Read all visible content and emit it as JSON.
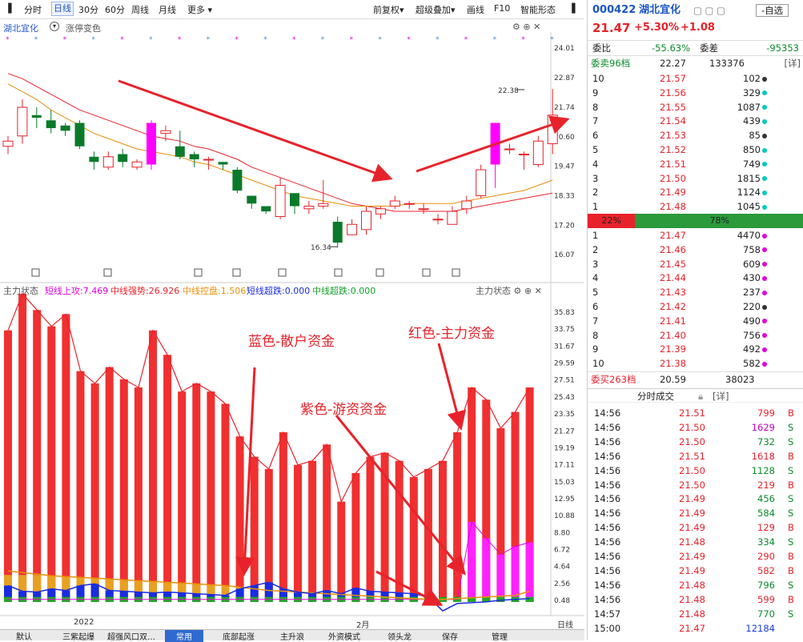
{
  "toolbar": {
    "items": [
      "分时",
      "日线",
      "30分",
      "60分",
      "周线",
      "月线",
      "更多 ▾"
    ],
    "right": [
      "前复权▾",
      "超级叠加▾",
      "画线",
      "F10",
      "智能形态"
    ]
  },
  "chart_header": {
    "name": "湖北宜化",
    "mode": "涨停变色"
  },
  "price_axis": [
    "24.01",
    "22.87",
    "21.74",
    "20.60",
    "19.47",
    "18.33",
    "17.20",
    "16.07"
  ],
  "price_labels": {
    "high": "22.38",
    "low": "16.34"
  },
  "indicator_header": {
    "title": "主力状态",
    "items": [
      {
        "label": "短线上攻:7.469",
        "color": "#e000e0"
      },
      {
        "label": "中线强势:26.926",
        "color": "#e8222a"
      },
      {
        "label": "中线控盘:1.506",
        "color": "#e8900a"
      },
      {
        "label": "短线超跌:0.000",
        "color": "#1a2ce0"
      },
      {
        "label": "中线超跌:0.000",
        "color": "#12a02a"
      }
    ],
    "right": "主力状态"
  },
  "ind_axis": [
    "35.83",
    "33.75",
    "31.67",
    "29.59",
    "27.51",
    "25.43",
    "23.35",
    "21.27",
    "19.19",
    "17.11",
    "15.03",
    "12.95",
    "10.88",
    "8.80",
    "6.72",
    "4.64",
    "2.56",
    "0.48"
  ],
  "x_labels": {
    "a": "2022",
    "b": "2月",
    "c": "日线"
  },
  "annotations": {
    "blue": "蓝色-散户资金",
    "red": "红色-主力资金",
    "purple": "紫色-游资资金"
  },
  "bottom_tabs": [
    "默认",
    "三紫起爆",
    "超强风口双…",
    "常用",
    "底部起涨",
    "主升浪",
    "外资模式",
    "领头龙",
    "保存",
    "管理"
  ],
  "colors": {
    "up": "#e8222a",
    "down": "#0a7a2a",
    "magenta": "#ff00ff",
    "orange": "#e8900a",
    "blue": "#1a2ce0"
  },
  "chart_data": {
    "type": "candlestick",
    "candles": [
      [
        20.2,
        20.4,
        19.9,
        20.6
      ],
      [
        20.6,
        21.7,
        20.3,
        22.0
      ],
      [
        21.4,
        21.3,
        20.9,
        21.7
      ],
      [
        21.2,
        20.9,
        20.7,
        21.6
      ],
      [
        21.0,
        20.8,
        20.6,
        21.1
      ],
      [
        21.1,
        20.2,
        20.1,
        21.2
      ],
      [
        19.8,
        19.6,
        19.3,
        20.0
      ],
      [
        19.4,
        19.8,
        19.3,
        20.0
      ],
      [
        19.9,
        19.6,
        19.4,
        20.1
      ],
      [
        19.4,
        19.6,
        19.3,
        19.7
      ],
      [
        19.5,
        21.1,
        19.3,
        21.2
      ],
      [
        20.7,
        20.8,
        20.4,
        21.0
      ],
      [
        20.2,
        19.8,
        19.7,
        20.8
      ],
      [
        19.9,
        19.7,
        19.4,
        20.0
      ],
      [
        19.7,
        19.7,
        19.3,
        19.8
      ],
      [
        19.6,
        19.5,
        19.3,
        19.6
      ],
      [
        19.3,
        18.5,
        18.4,
        19.4
      ],
      [
        18.3,
        18.0,
        17.8,
        18.3
      ],
      [
        17.9,
        17.7,
        17.6,
        17.9
      ],
      [
        17.5,
        18.7,
        17.4,
        19.0
      ],
      [
        18.4,
        17.9,
        17.6,
        18.4
      ],
      [
        17.8,
        17.9,
        17.6,
        18.1
      ],
      [
        17.9,
        18.0,
        17.8,
        18.9
      ],
      [
        17.3,
        16.5,
        16.3,
        17.5
      ],
      [
        16.8,
        17.2,
        16.8,
        17.4
      ],
      [
        17.0,
        17.7,
        16.8,
        17.9
      ],
      [
        17.6,
        17.8,
        17.4,
        17.9
      ],
      [
        17.9,
        18.1,
        17.8,
        18.3
      ],
      [
        18.0,
        18.0,
        17.8,
        18.1
      ],
      [
        17.8,
        17.8,
        17.6,
        18.0
      ],
      [
        17.4,
        17.4,
        17.2,
        17.6
      ],
      [
        17.2,
        17.7,
        17.2,
        17.9
      ],
      [
        17.8,
        18.1,
        17.6,
        18.3
      ],
      [
        18.3,
        19.3,
        18.2,
        19.5
      ],
      [
        19.5,
        21.1,
        18.6,
        21.1
      ],
      [
        20.1,
        20.1,
        19.9,
        20.3
      ],
      [
        19.9,
        19.9,
        19.3,
        20.0
      ],
      [
        19.5,
        20.4,
        19.4,
        20.6
      ],
      [
        20.3,
        21.4,
        19.9,
        22.4
      ]
    ],
    "ma_short": [
      23.0,
      22.8,
      22.5,
      22.2,
      21.9,
      21.6,
      21.4,
      21.2,
      21.0,
      20.8,
      20.6,
      20.5,
      20.4,
      20.2,
      20.1,
      19.9,
      19.7,
      19.4,
      19.2,
      19.0,
      18.8,
      18.6,
      18.4,
      18.2,
      18.0,
      17.9,
      17.8,
      17.7,
      17.7,
      17.7,
      17.7,
      17.7,
      17.8,
      17.9,
      18.0,
      18.1,
      18.2,
      18.3,
      18.4
    ],
    "ma_long": [
      22.6,
      22.3,
      22.0,
      21.6,
      21.3,
      21.0,
      20.7,
      20.5,
      20.3,
      20.1,
      20.0,
      19.9,
      19.8,
      19.6,
      19.5,
      19.3,
      19.1,
      18.9,
      18.7,
      18.5,
      18.3,
      18.2,
      18.1,
      18.0,
      17.9,
      17.9,
      17.9,
      17.9,
      18.0,
      18.0,
      18.0,
      18.0,
      18.1,
      18.2,
      18.3,
      18.4,
      18.5,
      18.7,
      18.9
    ],
    "red_bars": [
      33.5,
      38.0,
      36.0,
      34.0,
      35.5,
      28.5,
      27.0,
      29.0,
      27.5,
      26.5,
      33.5,
      30.5,
      26.0,
      27.0,
      26.0,
      24.5,
      20.5,
      18.0,
      16.5,
      21.0,
      17.0,
      17.5,
      19.5,
      12.5,
      16.0,
      18.0,
      18.5,
      17.5,
      15.5,
      16.5,
      17.5,
      21.0,
      26.5,
      25.0,
      21.5,
      23.5,
      26.5
    ],
    "magenta_bars": [
      0,
      0,
      0,
      0,
      0,
      0,
      0,
      0,
      0,
      0,
      0,
      0,
      0,
      0,
      0,
      0,
      0,
      0,
      0,
      0,
      0,
      0,
      0,
      0,
      0,
      0,
      0,
      0,
      0,
      0,
      0,
      0,
      10.0,
      8.0,
      6.0,
      7.0,
      7.5
    ],
    "blue_line": [
      2.2,
      1.5,
      1.4,
      1.8,
      1.6,
      2.2,
      2.4,
      1.6,
      1.5,
      1.4,
      1.3,
      1.4,
      1.3,
      1.2,
      1.1,
      1.0,
      1.8,
      2.2,
      2.6,
      1.8,
      1.4,
      1.2,
      1.6,
      1.2,
      1.9,
      1.5,
      1.4,
      1.3,
      1.2,
      0.8,
      -0.9,
      0.0,
      0.1,
      0.2,
      0.4,
      0.5,
      0.6
    ],
    "orange_line": [
      4.0,
      3.8,
      3.6,
      3.4,
      3.3,
      3.2,
      3.1,
      3.0,
      2.9,
      2.8,
      2.7,
      2.6,
      2.5,
      2.4,
      2.3,
      2.2,
      2.0,
      1.8,
      1.6,
      1.5,
      1.4,
      1.3,
      1.2,
      1.1,
      1.0,
      0.9,
      0.8,
      0.7,
      0.6,
      0.5,
      0.5,
      0.6,
      0.7,
      0.8,
      0.9,
      1.0,
      1.5
    ]
  },
  "quote": {
    "code": "000422",
    "name": "湖北宜化",
    "price": "21.47",
    "pct": "+5.30%",
    "chg": "+1.08",
    "fav": "-自选"
  },
  "ratio": {
    "label1": "委比",
    "v1": "-55.63%",
    "label2": "委差",
    "v2": "-95353"
  },
  "sell_total": {
    "label": "委卖96档",
    "price": "22.27",
    "vol": "133376",
    "btn": "[详]"
  },
  "asks": [
    {
      "lvl": "10",
      "price": "21.57",
      "vol": "102",
      "dot": "#333"
    },
    {
      "lvl": "9",
      "price": "21.56",
      "vol": "329",
      "dot": "#00c8c8"
    },
    {
      "lvl": "8",
      "price": "21.55",
      "vol": "1087",
      "dot": "#00c8c8"
    },
    {
      "lvl": "7",
      "price": "21.54",
      "vol": "439",
      "dot": "#00c8c8"
    },
    {
      "lvl": "6",
      "price": "21.53",
      "vol": "85",
      "dot": "#333"
    },
    {
      "lvl": "5",
      "price": "21.52",
      "vol": "850",
      "dot": "#00c8c8"
    },
    {
      "lvl": "4",
      "price": "21.51",
      "vol": "749",
      "dot": "#00c8c8"
    },
    {
      "lvl": "3",
      "price": "21.50",
      "vol": "1815",
      "dot": "#00c8c8"
    },
    {
      "lvl": "2",
      "price": "21.49",
      "vol": "1124",
      "dot": "#00c8c8"
    },
    {
      "lvl": "1",
      "price": "21.48",
      "vol": "1045",
      "dot": "#00c8c8"
    }
  ],
  "strength": {
    "left": "22%",
    "right": "78%",
    "left_pct": 22
  },
  "bids": [
    {
      "lvl": "1",
      "price": "21.47",
      "vol": "4470",
      "dot": "#e000e0"
    },
    {
      "lvl": "2",
      "price": "21.46",
      "vol": "758",
      "dot": "#e000e0"
    },
    {
      "lvl": "3",
      "price": "21.45",
      "vol": "609",
      "dot": "#e000e0"
    },
    {
      "lvl": "4",
      "price": "21.44",
      "vol": "430",
      "dot": "#e000e0"
    },
    {
      "lvl": "5",
      "price": "21.43",
      "vol": "237",
      "dot": "#e000e0"
    },
    {
      "lvl": "6",
      "price": "21.42",
      "vol": "220",
      "dot": "#333"
    },
    {
      "lvl": "7",
      "price": "21.41",
      "vol": "490",
      "dot": "#e000e0"
    },
    {
      "lvl": "8",
      "price": "21.40",
      "vol": "756",
      "dot": "#e000e0"
    },
    {
      "lvl": "9",
      "price": "21.39",
      "vol": "492",
      "dot": "#e000e0"
    },
    {
      "lvl": "10",
      "price": "21.38",
      "vol": "582",
      "dot": "#e000e0"
    }
  ],
  "buy_total": {
    "label": "委买263档",
    "price": "20.59",
    "vol": "38023"
  },
  "ticks_header": {
    "title": "分时成交",
    "btn": "[详]"
  },
  "ticks": [
    {
      "t": "14:56",
      "p": "21.51",
      "v": "799",
      "s": "B"
    },
    {
      "t": "14:56",
      "p": "21.50",
      "v": "1629",
      "s": "S"
    },
    {
      "t": "14:56",
      "p": "21.50",
      "v": "732",
      "s": "S"
    },
    {
      "t": "14:56",
      "p": "21.51",
      "v": "1618",
      "s": "B"
    },
    {
      "t": "14:56",
      "p": "21.50",
      "v": "1128",
      "s": "S"
    },
    {
      "t": "14:56",
      "p": "21.50",
      "v": "219",
      "s": "B"
    },
    {
      "t": "14:56",
      "p": "21.49",
      "v": "456",
      "s": "S"
    },
    {
      "t": "14:56",
      "p": "21.49",
      "v": "584",
      "s": "S"
    },
    {
      "t": "14:56",
      "p": "21.49",
      "v": "129",
      "s": "B"
    },
    {
      "t": "14:56",
      "p": "21.48",
      "v": "334",
      "s": "S"
    },
    {
      "t": "14:56",
      "p": "21.49",
      "v": "290",
      "s": "B"
    },
    {
      "t": "14:56",
      "p": "21.49",
      "v": "582",
      "s": "B"
    },
    {
      "t": "14:56",
      "p": "21.48",
      "v": "796",
      "s": "S"
    },
    {
      "t": "14:56",
      "p": "21.48",
      "v": "599",
      "s": "B"
    },
    {
      "t": "14:57",
      "p": "21.48",
      "v": "770",
      "s": "S"
    },
    {
      "t": "15:00",
      "p": "21.47",
      "v": "12184",
      "s": ""
    }
  ]
}
